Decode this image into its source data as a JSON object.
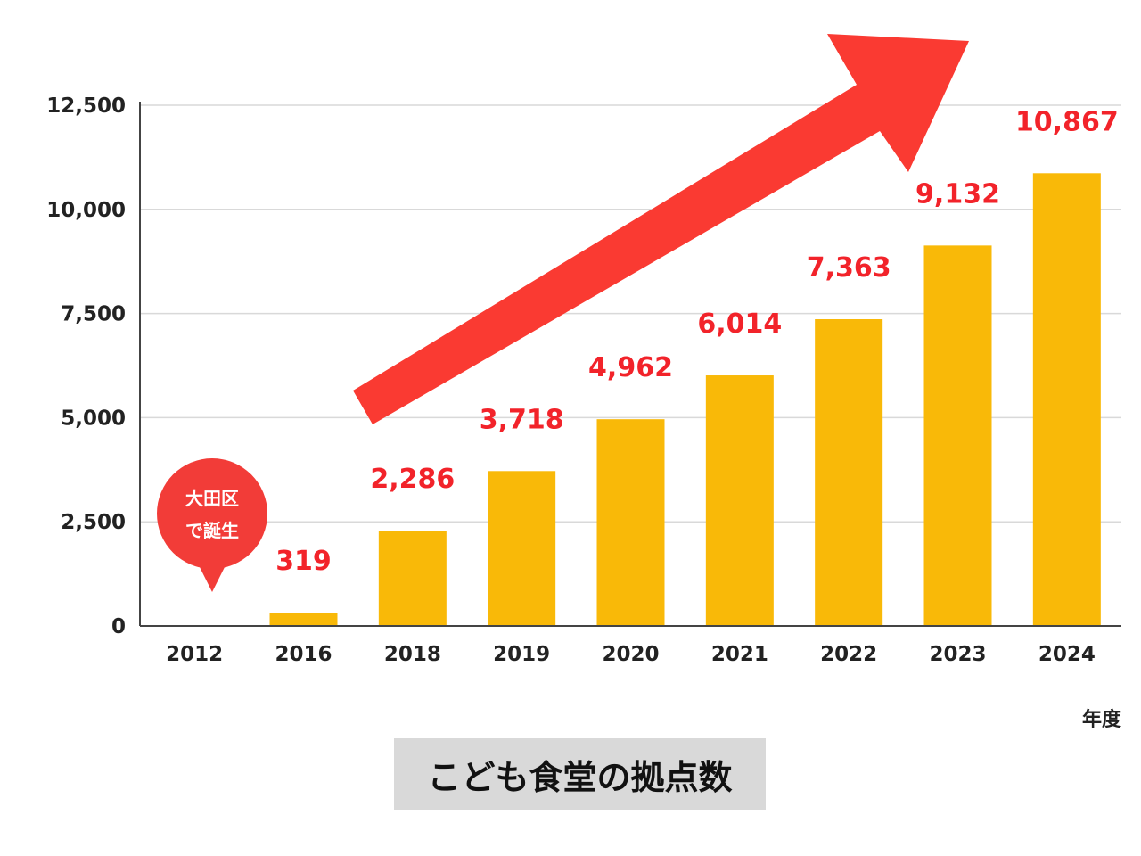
{
  "chart_data": {
    "type": "bar",
    "title": "こども食堂の拠点数",
    "xlabel": "年度",
    "ylabel": "",
    "categories": [
      "2012",
      "2016",
      "2018",
      "2019",
      "2020",
      "2021",
      "2022",
      "2023",
      "2024"
    ],
    "values": [
      0,
      319,
      2286,
      3718,
      4962,
      6014,
      7363,
      9132,
      10867
    ],
    "data_labels": [
      "",
      "319",
      "2,286",
      "3,718",
      "4,962",
      "6,014",
      "7,363",
      "9,132",
      "10,867"
    ],
    "ylim": [
      0,
      12500
    ],
    "yticks": [
      0,
      2500,
      5000,
      7500,
      10000,
      12500
    ],
    "ytick_labels": [
      "0",
      "2,500",
      "5,000",
      "7,500",
      "10,000",
      "12,500"
    ],
    "grid": true,
    "legend": "none",
    "annotations": {
      "bubble_category": "2012",
      "bubble_lines": [
        "大田区",
        "で誕生"
      ],
      "trend_arrow": "up-right"
    }
  },
  "colors": {
    "bar": "#f9b908",
    "data_label": "#f2232a",
    "arrow": "#fa3a32",
    "bubble": "#f23c38",
    "grid": "#d9d9d9",
    "axis": "#444444",
    "title_box": "#d9d9d9"
  }
}
